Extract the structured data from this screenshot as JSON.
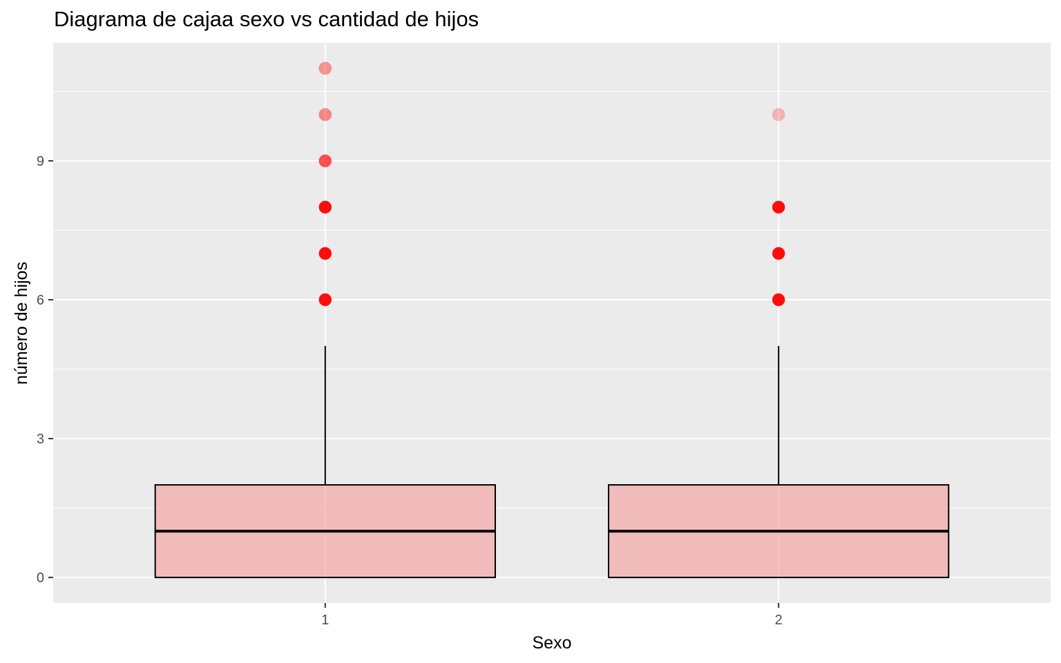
{
  "chart_data": {
    "type": "boxplot",
    "title": "Diagrama de cajaa sexo vs cantidad de hijos",
    "xlabel": "Sexo",
    "ylabel": "número de hijos",
    "categories": [
      "1",
      "2"
    ],
    "y_ticks": [
      0,
      3,
      6,
      9
    ],
    "ylim": [
      -0.55,
      11.55
    ],
    "grid": true,
    "colors": {
      "panel": "#ebebeb",
      "box_fill": "#f4a6a6",
      "box_stroke": "#000000",
      "outlier": "#ff0000"
    },
    "boxes": [
      {
        "category": "1",
        "min": 0,
        "q1": 0,
        "median": 1,
        "q3": 2,
        "max": 5,
        "outliers": [
          6,
          7,
          8,
          9,
          10,
          11
        ],
        "outlier_opacity": [
          1,
          1,
          1,
          0.7,
          0.45,
          0.4
        ]
      },
      {
        "category": "2",
        "min": 0,
        "q1": 0,
        "median": 1,
        "q3": 2,
        "max": 5,
        "outliers": [
          6,
          7,
          8,
          10
        ],
        "outlier_opacity": [
          1,
          1,
          1,
          0.25
        ]
      }
    ]
  }
}
